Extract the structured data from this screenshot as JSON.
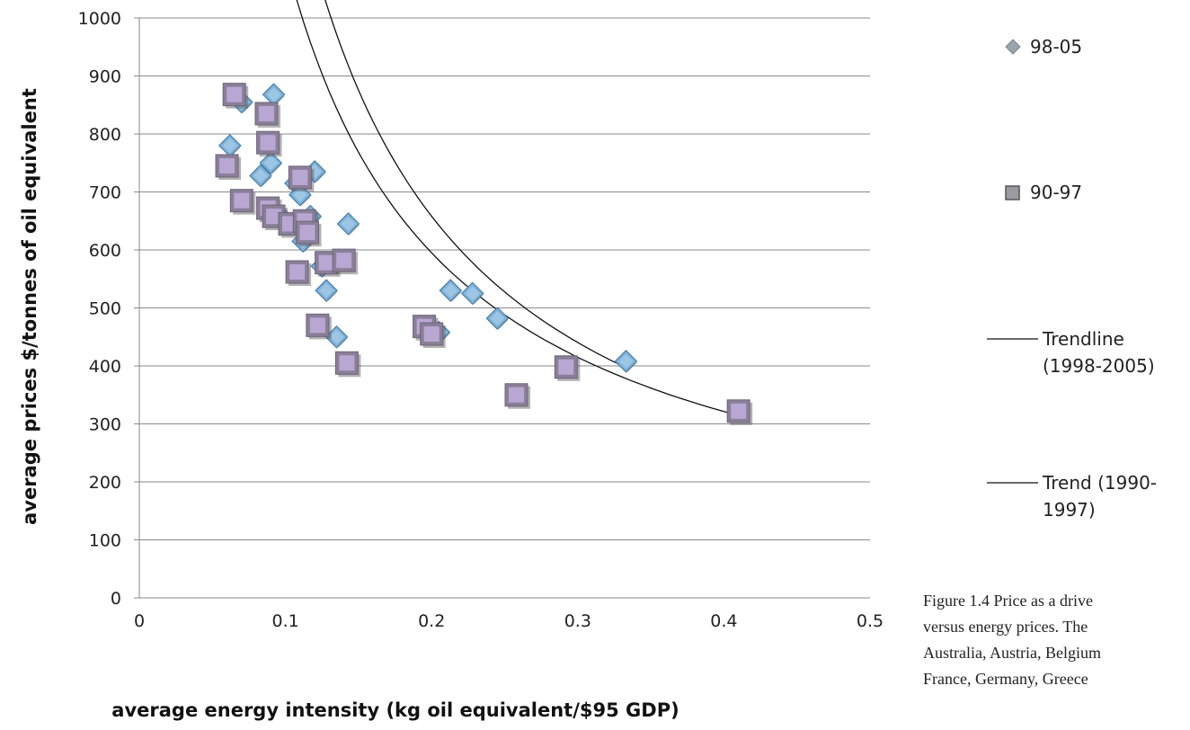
{
  "chart_data": {
    "type": "scatter",
    "xlabel": "average energy intensity (kg oil equivalent/$95 GDP)",
    "ylabel": "average prices $/tonnes of oil equivalent",
    "xlim": [
      0,
      0.5
    ],
    "ylim": [
      0,
      1000
    ],
    "xticks": [
      "0",
      "0.1",
      "0.2",
      "0.3",
      "0.4",
      "0.5"
    ],
    "yticks": [
      "0",
      "100",
      "200",
      "300",
      "400",
      "500",
      "600",
      "700",
      "800",
      "900",
      "1000"
    ],
    "grid": "horizontal",
    "legend_position": "right",
    "series": [
      {
        "name": "98-05",
        "marker": "diamond",
        "color": "#7fb3d9",
        "points": [
          [
            0.062,
            780
          ],
          [
            0.07,
            855
          ],
          [
            0.092,
            868
          ],
          [
            0.083,
            728
          ],
          [
            0.09,
            750
          ],
          [
            0.107,
            715
          ],
          [
            0.11,
            695
          ],
          [
            0.12,
            735
          ],
          [
            0.117,
            658
          ],
          [
            0.143,
            645
          ],
          [
            0.1,
            650
          ],
          [
            0.112,
            615
          ],
          [
            0.128,
            530
          ],
          [
            0.135,
            450
          ],
          [
            0.125,
            572
          ],
          [
            0.213,
            530
          ],
          [
            0.228,
            525
          ],
          [
            0.245,
            482
          ],
          [
            0.205,
            458
          ],
          [
            0.333,
            408
          ]
        ]
      },
      {
        "name": "90-97",
        "marker": "square",
        "color": "#b8a7d2",
        "points": [
          [
            0.065,
            868
          ],
          [
            0.087,
            835
          ],
          [
            0.088,
            785
          ],
          [
            0.06,
            745
          ],
          [
            0.07,
            685
          ],
          [
            0.088,
            672
          ],
          [
            0.092,
            658
          ],
          [
            0.103,
            645
          ],
          [
            0.113,
            650
          ],
          [
            0.11,
            725
          ],
          [
            0.115,
            630
          ],
          [
            0.108,
            562
          ],
          [
            0.128,
            578
          ],
          [
            0.14,
            582
          ],
          [
            0.122,
            470
          ],
          [
            0.142,
            405
          ],
          [
            0.195,
            468
          ],
          [
            0.2,
            455
          ],
          [
            0.258,
            350
          ],
          [
            0.292,
            398
          ],
          [
            0.41,
            322
          ]
        ]
      }
    ],
    "trendlines": [
      {
        "name": "Trendline (1998-2005)",
        "type": "power",
        "color": "#111111",
        "x_range": [
          0.062,
          0.333
        ],
        "a": 133.52,
        "b": -0.9912
      },
      {
        "name": "Trend (1990-1997)",
        "type": "power",
        "color": "#111111",
        "x_range": [
          0.06,
          0.41
        ],
        "a": 142.3,
        "b": -0.8889
      }
    ]
  },
  "legend": {
    "items": [
      {
        "marker": "diamond",
        "label_lines": [
          "98-05"
        ]
      },
      {
        "marker": "square",
        "label_lines": [
          "90-97"
        ]
      },
      {
        "marker": "line",
        "label_lines": [
          "Trendline",
          "(1998-2005)"
        ]
      },
      {
        "marker": "line",
        "label_lines": [
          "Trend (1990-",
          "1997)"
        ]
      }
    ]
  },
  "caption": {
    "lines": [
      "Figure 1.4 Price as a drive",
      "versus energy prices. The",
      "Australia, Austria, Belgium",
      "France, Germany, Greece"
    ]
  }
}
